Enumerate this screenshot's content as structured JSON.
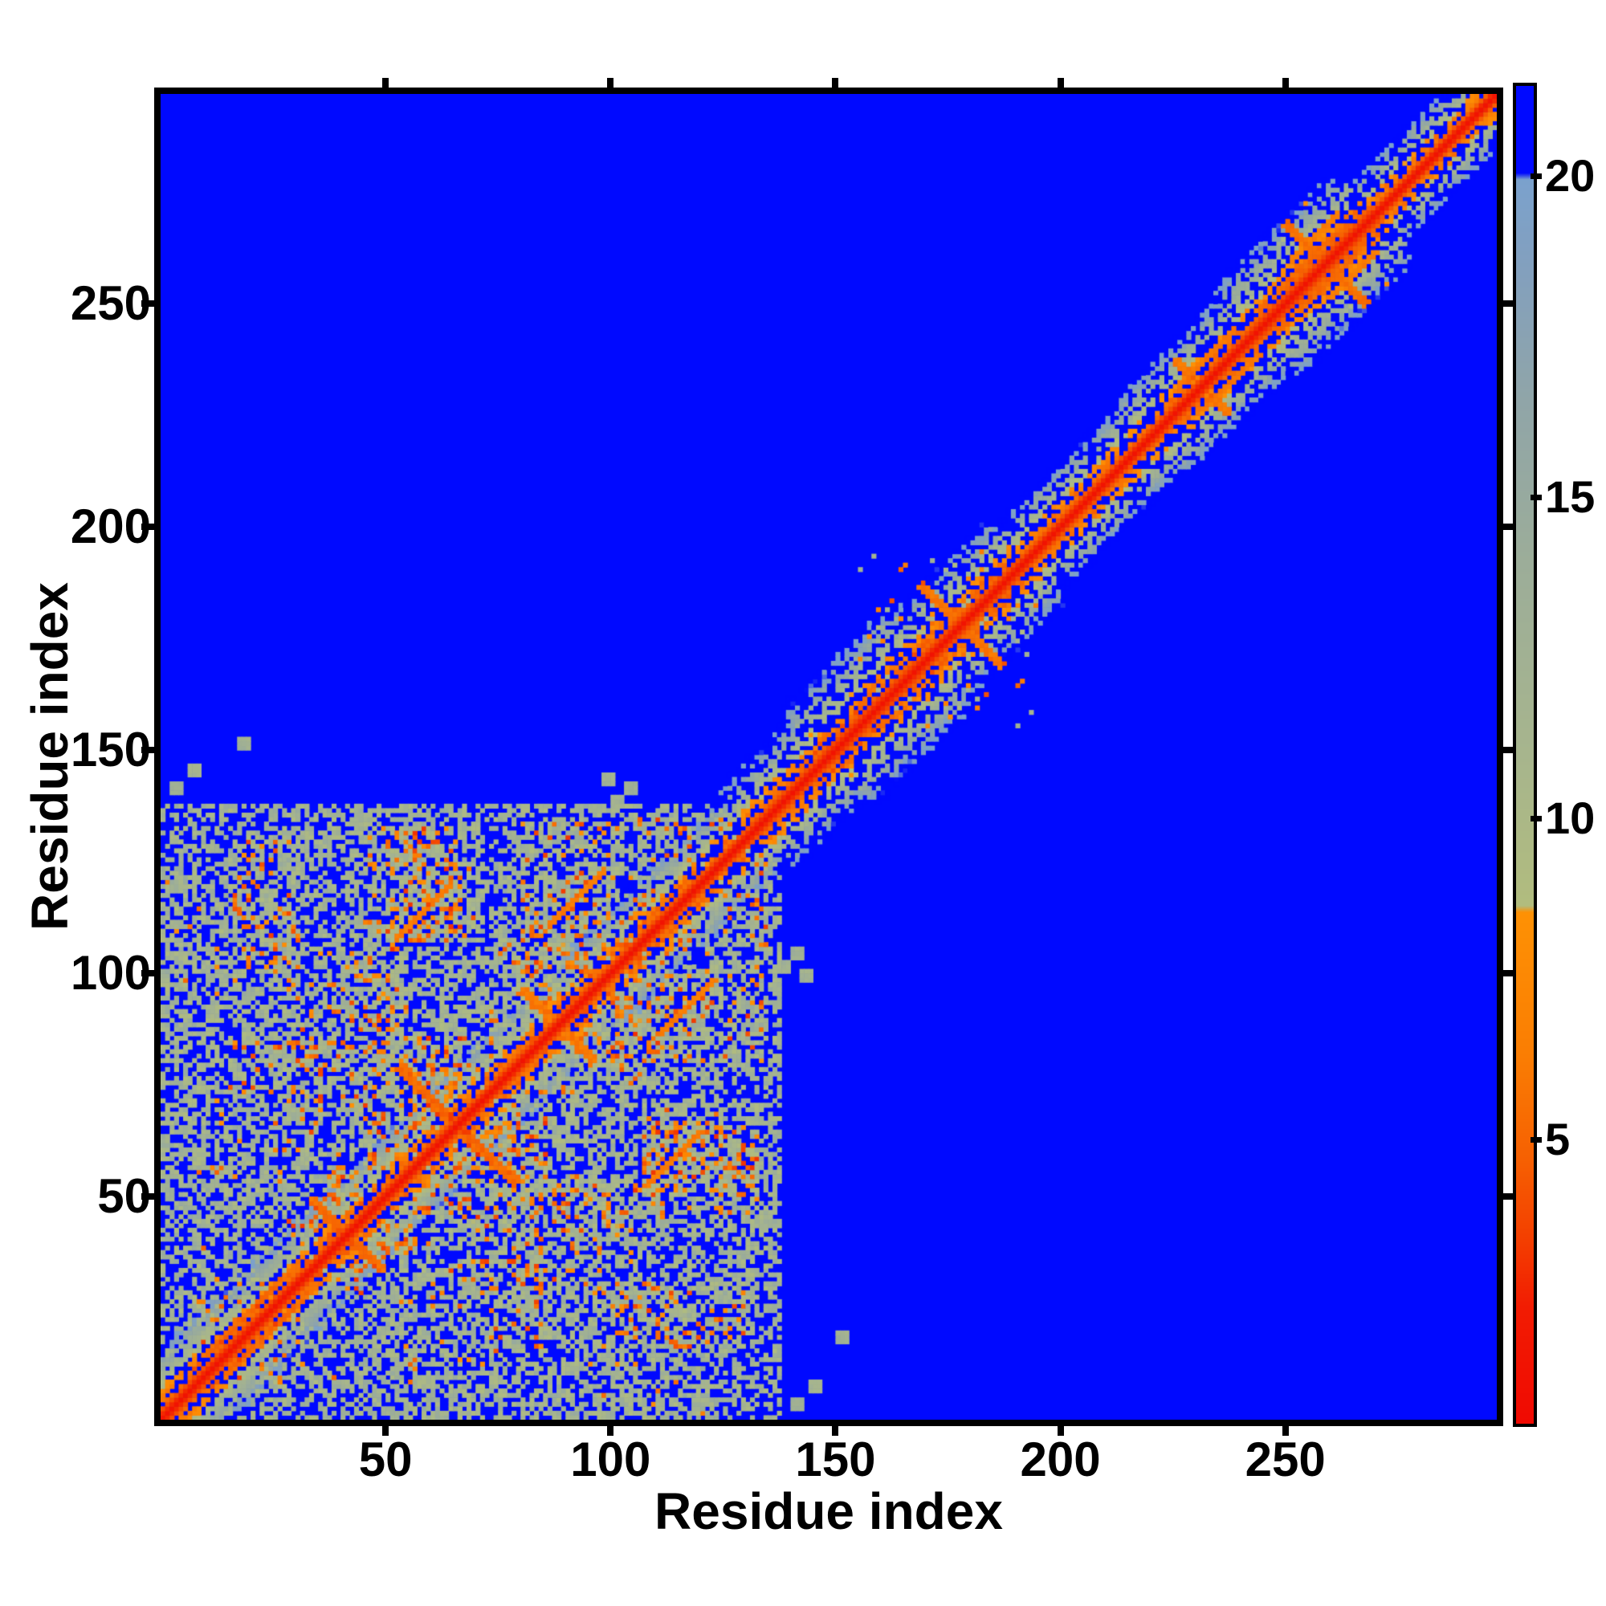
{
  "figure": {
    "background": "#ffffff",
    "text_color": "#000000"
  },
  "chart_data": {
    "type": "heatmap",
    "title": "",
    "xlabel": "Residue index",
    "ylabel": "Residue index",
    "x_ticks": [
      50,
      100,
      150,
      200,
      250
    ],
    "y_ticks": [
      50,
      100,
      150,
      200,
      250
    ],
    "axis_range": [
      0,
      297
    ],
    "n_residues": 297,
    "grid": false,
    "background_color": "#0009ff",
    "description": "Symmetric residue-residue distance map: red diagonal (short distances) with orange and sage halo, dense contact clusters among residues 0-135, narrower contact band with local clusters along the diagonal for residues 135-297, blue background for distances beyond cutoff.",
    "colorbar": {
      "position": "right",
      "ticks": [
        5,
        10,
        15,
        20
      ],
      "vmin": 0.6,
      "vmax": 21.4
    },
    "colormap_stops": [
      [
        0.6,
        "#f00a02"
      ],
      [
        2.4,
        "#f21c02"
      ],
      [
        3.4,
        "#f33d00"
      ],
      [
        4.7,
        "#f66002"
      ],
      [
        6.3,
        "#fa7d03"
      ],
      [
        8.55,
        "#fe9104"
      ],
      [
        8.65,
        "#b1bc7e"
      ],
      [
        11.0,
        "#a7b58d"
      ],
      [
        14.0,
        "#9cad99"
      ],
      [
        16.5,
        "#90a5a8"
      ],
      [
        18.5,
        "#83a0bd"
      ],
      [
        19.95,
        "#7ba1cd"
      ],
      [
        20.05,
        "#0009ff"
      ],
      [
        21.4,
        "#0009ff"
      ]
    ],
    "matrix_model": {
      "seed": 1337,
      "diagonal_min": 1.5,
      "adjacent_distance": 3.8,
      "cutoff": 20,
      "band_halfwidth": 11,
      "band_edge_jitter": 1.3,
      "band_hole_prob": 0.018,
      "domain_limit": 138,
      "domain_speckle_prob": 0.012,
      "width_regions": [
        [
          0,
          20,
          1.25
        ],
        [
          20,
          132,
          1.12
        ],
        [
          132,
          148,
          1.3
        ],
        [
          148,
          170,
          1.6
        ],
        [
          170,
          192,
          1.35
        ],
        [
          192,
          220,
          1.1
        ],
        [
          220,
          243,
          1.25
        ],
        [
          243,
          270,
          1.5
        ],
        [
          270,
          290,
          0.95
        ],
        [
          290,
          297,
          0.85
        ]
      ],
      "clusters": [
        {
          "i": [
            16,
            30
          ],
          "j": [
            100,
            130
          ],
          "v": 12.5,
          "spread": 4.5,
          "hole": 0.3,
          "orange": 0.05
        },
        {
          "i": [
            50,
            66
          ],
          "j": [
            104,
            132
          ],
          "v": 12.0,
          "spread": 4.5,
          "hole": 0.25,
          "orange": 0.07
        },
        {
          "i": [
            80,
            103
          ],
          "j": [
            100,
            133
          ],
          "v": 12.0,
          "spread": 4.5,
          "hole": 0.3,
          "orange": 0.06
        },
        {
          "i": [
            28,
            48
          ],
          "j": [
            66,
            104
          ],
          "v": 12.5,
          "spread": 4.5,
          "hole": 0.35,
          "orange": 0.05
        },
        {
          "i": [
            45,
            66
          ],
          "j": [
            58,
            100
          ],
          "v": 12.0,
          "spread": 4.5,
          "hole": 0.3,
          "orange": 0.06
        },
        {
          "i": [
            48,
            86
          ],
          "j": [
            80,
            112
          ],
          "v": 12.5,
          "spread": 4.5,
          "hole": 0.35,
          "orange": 0.05
        },
        {
          "i": [
            8,
            40
          ],
          "j": [
            10,
            56
          ],
          "v": 12.0,
          "spread": 4.5,
          "hole": 0.38,
          "orange": 0.06
        },
        {
          "i": [
            36,
            56
          ],
          "j": [
            36,
            60
          ],
          "v": 11.5,
          "spread": 4.0,
          "hole": 0.3,
          "orange": 0.07
        },
        {
          "i": [
            0,
            16
          ],
          "j": [
            95,
            124
          ],
          "v": 13.0,
          "spread": 4.0,
          "hole": 0.45,
          "orange": 0.04
        },
        {
          "i": [
            12,
            35
          ],
          "j": [
            60,
            84
          ],
          "v": 12.5,
          "spread": 4.5,
          "hole": 0.4,
          "orange": 0.05
        },
        {
          "i": [
            56,
            80
          ],
          "j": [
            56,
            80
          ],
          "v": 12.0,
          "spread": 4.0,
          "hole": 0.3,
          "orange": 0.08
        },
        {
          "i": [
            0,
            30
          ],
          "j": [
            96,
            112
          ],
          "v": 13.0,
          "spread": 3.5,
          "hole": 0.5,
          "orange": 0.04
        },
        {
          "i": [
            37,
            70
          ],
          "j": [
            110,
            132
          ],
          "v": 13.0,
          "spread": 4.0,
          "hole": 0.45,
          "orange": 0.04
        },
        {
          "i": [
            104,
            133
          ],
          "j": [
            104,
            134
          ],
          "v": 12.5,
          "spread": 4.5,
          "hole": 0.35,
          "orange": 0.05
        },
        {
          "i": [
            84,
            104
          ],
          "j": [
            84,
            106
          ],
          "v": 12.0,
          "spread": 4.0,
          "hole": 0.3,
          "orange": 0.06
        },
        {
          "i": [
            132,
            150
          ],
          "j": [
            134,
            154
          ],
          "v": 13.0,
          "spread": 4.0,
          "hole": 0.5,
          "orange": 0.04
        },
        {
          "i": [
            155,
            188
          ],
          "j": [
            160,
            194
          ],
          "v": 13.0,
          "spread": 4.5,
          "hole": 0.45,
          "orange": 0.05
        },
        {
          "i": [
            196,
            214
          ],
          "j": [
            200,
            218
          ],
          "v": 13.5,
          "spread": 3.5,
          "hole": 0.55,
          "orange": 0.04
        },
        {
          "i": [
            222,
            242
          ],
          "j": [
            226,
            246
          ],
          "v": 13.0,
          "spread": 4.0,
          "hole": 0.5,
          "orange": 0.05
        },
        {
          "i": [
            246,
            268
          ],
          "j": [
            250,
            272
          ],
          "v": 13.0,
          "spread": 4.0,
          "hole": 0.45,
          "orange": 0.05
        }
      ],
      "voids": [
        {
          "i": [
            55,
            72
          ],
          "j": [
            86,
            106
          ]
        },
        {
          "i": [
            30,
            44
          ],
          "j": [
            112,
            126
          ]
        },
        {
          "i": [
            10,
            26
          ],
          "j": [
            32,
            52
          ]
        },
        {
          "i": [
            0,
            10
          ],
          "j": [
            56,
            94
          ]
        }
      ],
      "anti_streaks": [
        {
          "c": 82,
          "half": 8,
          "v": 5.6
        },
        {
          "c": 131,
          "half": 13,
          "v": 5.2
        },
        {
          "c": 176,
          "half": 8,
          "v": 6.0
        },
        {
          "c": 183,
          "half": 6,
          "v": 6.3,
          "jmin": 104
        },
        {
          "c": 355,
          "half": 9,
          "v": 5.8
        },
        {
          "c": 462,
          "half": 6,
          "v": 6.2
        },
        {
          "c": 517,
          "half": 9,
          "v": 5.6
        }
      ],
      "parallel_streaks": [
        {
          "off": 4,
          "a": 10,
          "b": 30,
          "v": 5.4
        },
        {
          "off": 55,
          "a": 52,
          "b": 64,
          "v": 6.4
        },
        {
          "off": 24,
          "a": 86,
          "b": 98,
          "v": 6.4
        },
        {
          "off": 5,
          "a": 226,
          "b": 238,
          "v": 6.2
        },
        {
          "off": 4,
          "a": 248,
          "b": 262,
          "v": 5.3
        },
        {
          "off": 8,
          "a": 251,
          "b": 261,
          "v": 6.6
        }
      ],
      "dots": [
        {
          "i": 101,
          "j": 138
        },
        {
          "i": 104,
          "j": 141
        },
        {
          "i": 99,
          "j": 143
        },
        {
          "i": 3,
          "j": 141
        },
        {
          "i": 7,
          "j": 145
        },
        {
          "i": 18,
          "j": 151
        }
      ]
    }
  }
}
